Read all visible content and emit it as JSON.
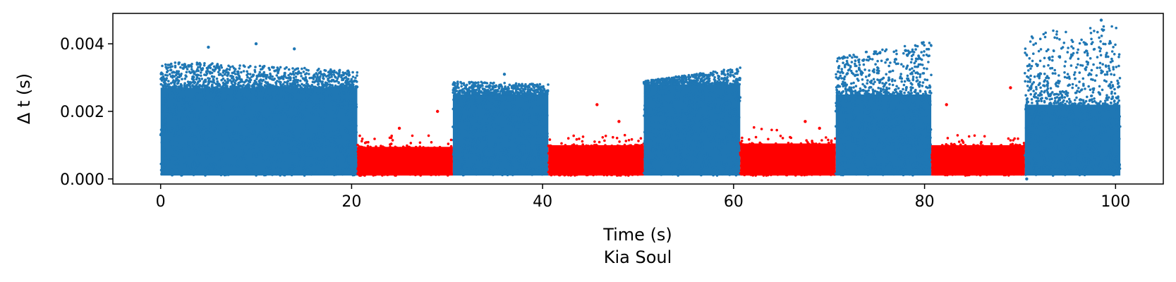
{
  "chart_data": {
    "type": "scatter",
    "title": "",
    "xlabel": "Time (s)",
    "ylabel": "Δ t (s)",
    "subtitle": "Kia Soul",
    "xlim": [
      -5,
      105
    ],
    "ylim": [
      -0.00015,
      0.0049
    ],
    "x_ticks": [
      0,
      20,
      40,
      60,
      80,
      100
    ],
    "x_tick_labels": [
      "0",
      "20",
      "40",
      "60",
      "80",
      "100"
    ],
    "y_ticks": [
      0,
      0.002,
      0.004
    ],
    "y_tick_labels": [
      "0.000",
      "0.002",
      "0.004"
    ],
    "grid": false,
    "legend": "none",
    "colors": {
      "normal": "#1f77b4",
      "attack": "#ff0000"
    },
    "segments": [
      {
        "kind": "normal",
        "x": [
          0,
          20.6
        ],
        "dense_y": [
          0.0001,
          0.0027
        ],
        "sparse_y_max": [
          0.0035,
          0.0032
        ],
        "outliers": [
          [
            5,
            0.0039
          ],
          [
            10,
            0.004
          ],
          [
            14,
            0.00385
          ]
        ]
      },
      {
        "kind": "attack",
        "x": [
          20.6,
          30.6
        ],
        "dense_y": [
          0.0001,
          0.00095
        ],
        "sparse_y_max": [
          0.0013,
          0.0013
        ],
        "outliers": [
          [
            25,
            0.0015
          ],
          [
            29,
            0.002
          ]
        ]
      },
      {
        "kind": "normal",
        "x": [
          30.6,
          40.6
        ],
        "dense_y": [
          0.0001,
          0.0025
        ],
        "sparse_y_max": [
          0.0029,
          0.0028
        ],
        "outliers": [
          [
            36,
            0.0031
          ]
        ]
      },
      {
        "kind": "attack",
        "x": [
          40.6,
          50.6
        ],
        "dense_y": [
          0.0001,
          0.001
        ],
        "sparse_y_max": [
          0.0013,
          0.0013
        ],
        "outliers": [
          [
            45.7,
            0.0022
          ],
          [
            48,
            0.0017
          ]
        ]
      },
      {
        "kind": "normal",
        "x": [
          50.6,
          60.7
        ],
        "dense_y": [
          0.0001,
          0.0028
        ],
        "sparse_y_max": [
          0.0029,
          0.0033
        ],
        "outliers": [
          [
            55,
            0.003
          ]
        ]
      },
      {
        "kind": "attack",
        "x": [
          60.7,
          70.7
        ],
        "dense_y": [
          0.0001,
          0.00105
        ],
        "sparse_y_max": [
          0.0016,
          0.0012
        ],
        "outliers": [
          [
            67.5,
            0.0017
          ],
          [
            69,
            0.0015
          ]
        ]
      },
      {
        "kind": "normal",
        "x": [
          70.7,
          80.7
        ],
        "dense_y": [
          0.0001,
          0.0025
        ],
        "sparse_y_max": [
          0.0036,
          0.0041
        ],
        "outliers": [
          [
            78,
            0.0038
          ]
        ]
      },
      {
        "kind": "attack",
        "x": [
          80.7,
          90.5
        ],
        "dense_y": [
          0.0001,
          0.001
        ],
        "sparse_y_max": [
          0.0013,
          0.0013
        ],
        "outliers": [
          [
            82.3,
            0.0022
          ],
          [
            89,
            0.0027
          ]
        ]
      },
      {
        "kind": "normal",
        "x": [
          90.5,
          100.5
        ],
        "dense_y": [
          0.0001,
          0.0022
        ],
        "sparse_y_max": [
          0.0043,
          0.0046
        ],
        "outliers": [
          [
            98.5,
            0.0047
          ],
          [
            90.7,
            0.0
          ]
        ]
      }
    ]
  }
}
